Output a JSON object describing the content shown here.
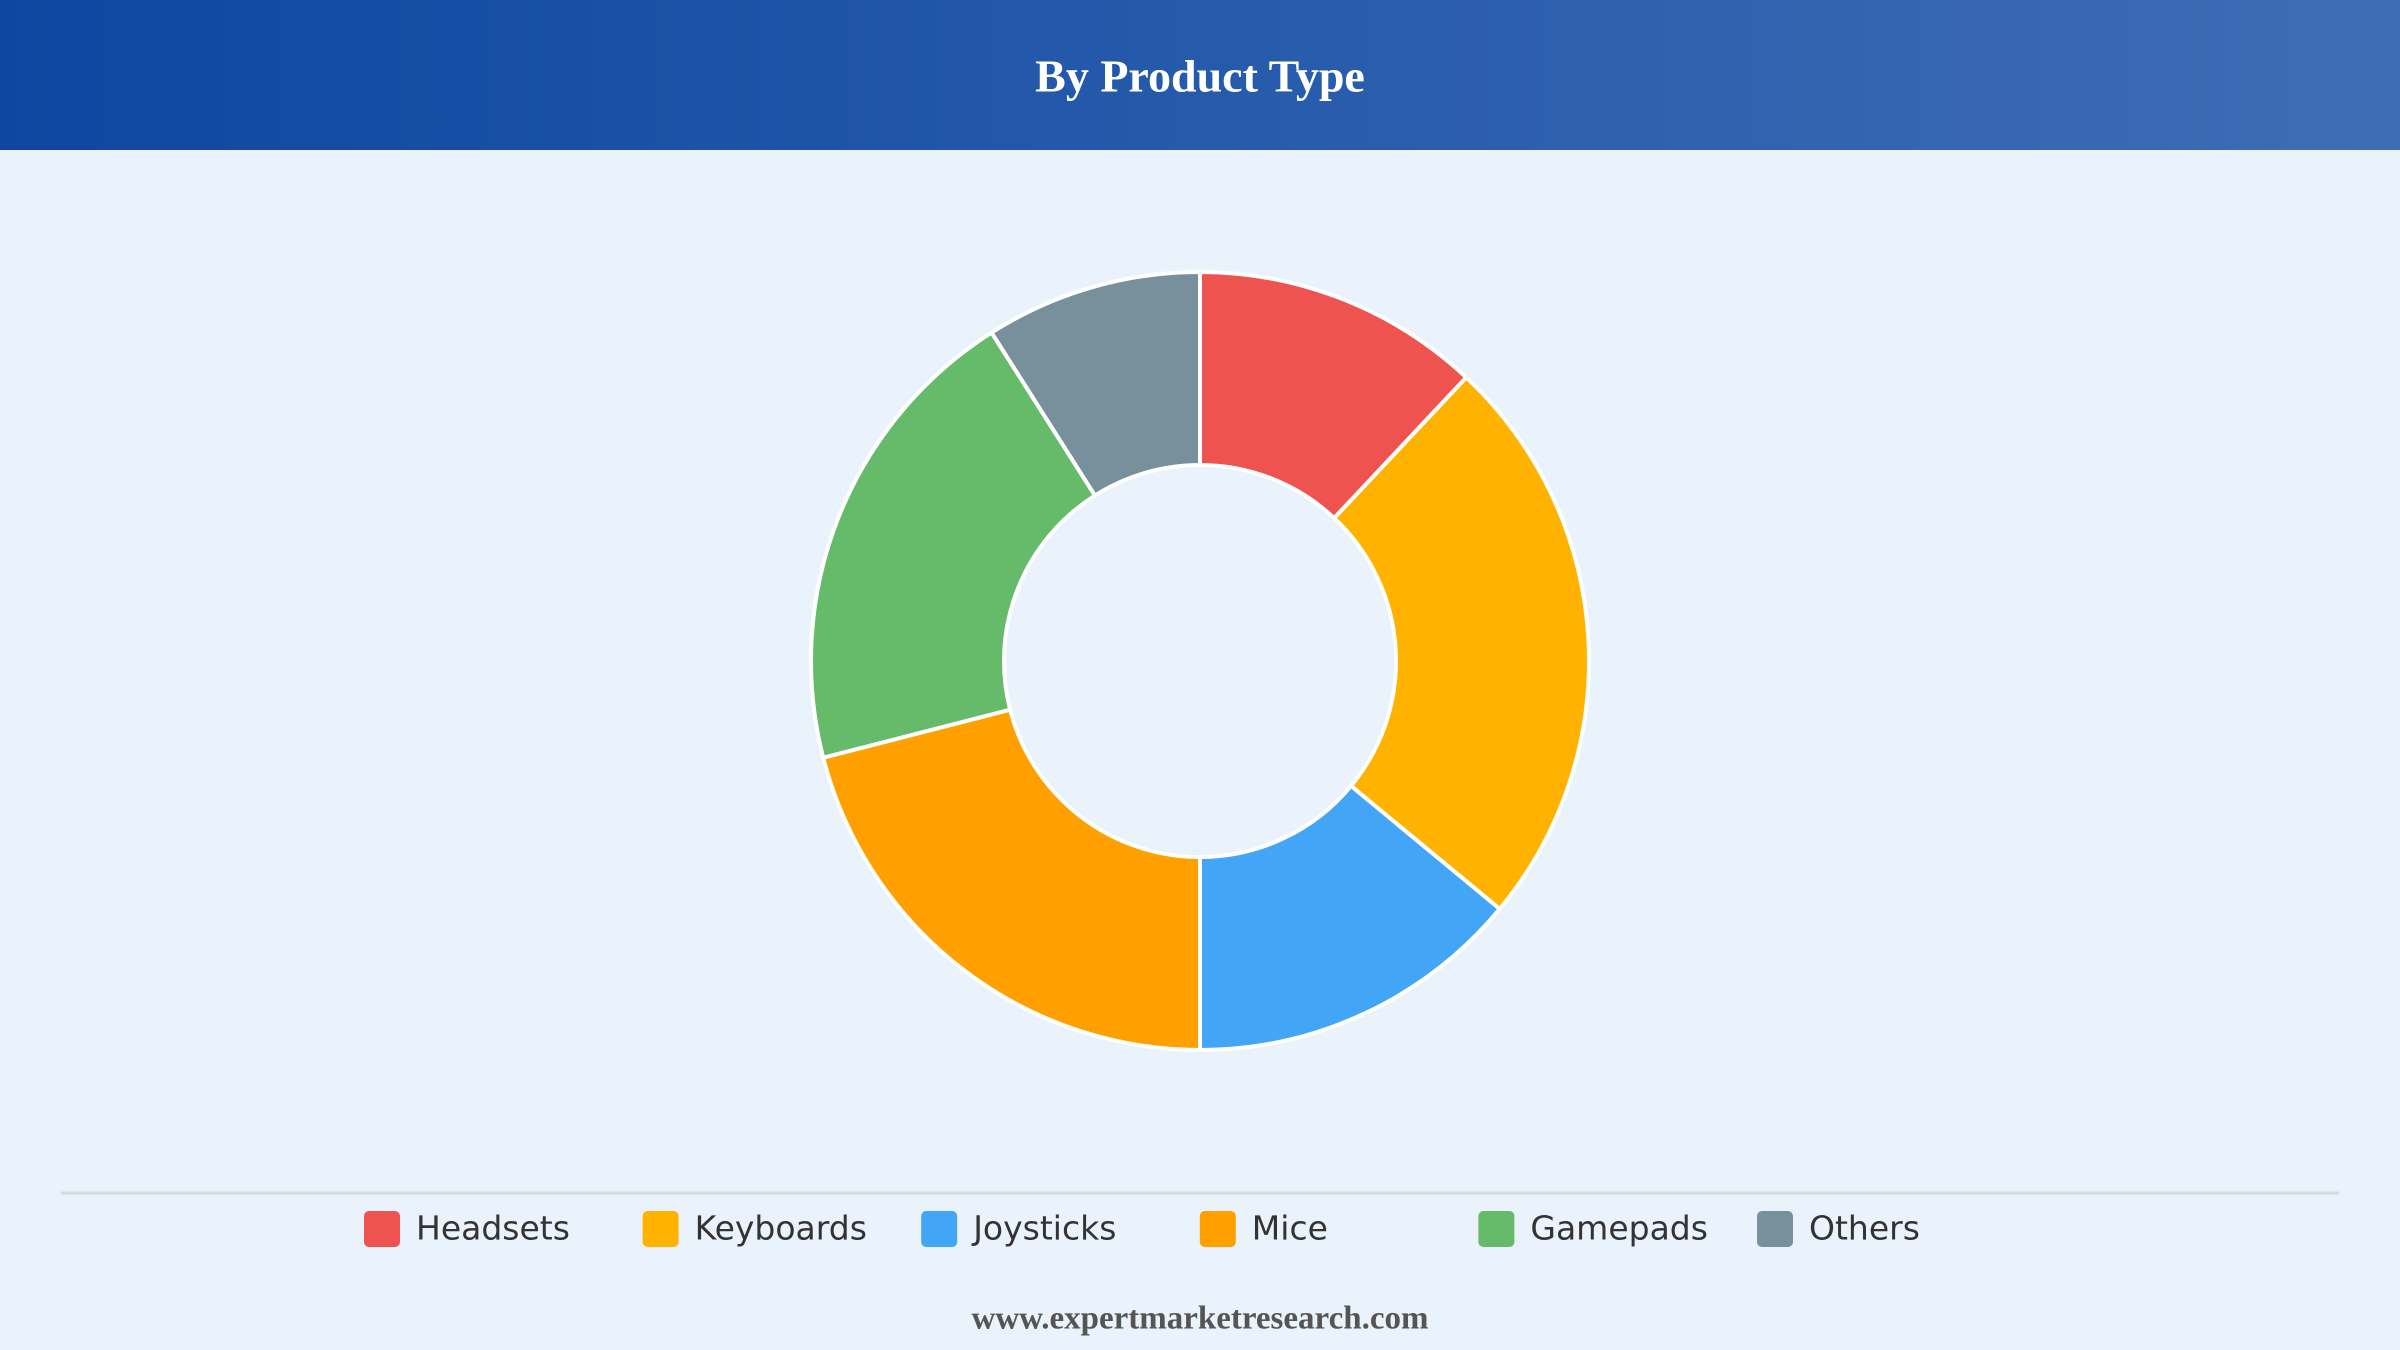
{
  "chart_data": {
    "type": "donut",
    "title": "By Product Type",
    "categories": [
      "Headsets",
      "Keyboards",
      "Joysticks",
      "Mice",
      "Gamepads",
      "Others"
    ],
    "values": [
      12,
      24,
      14,
      21,
      20,
      9
    ],
    "colors": [
      "#ef5350",
      "#ffb300",
      "#42a5f5",
      "#ffa000",
      "#66bb6a",
      "#78909c"
    ],
    "source": "www.expertmarketresearch.com"
  }
}
